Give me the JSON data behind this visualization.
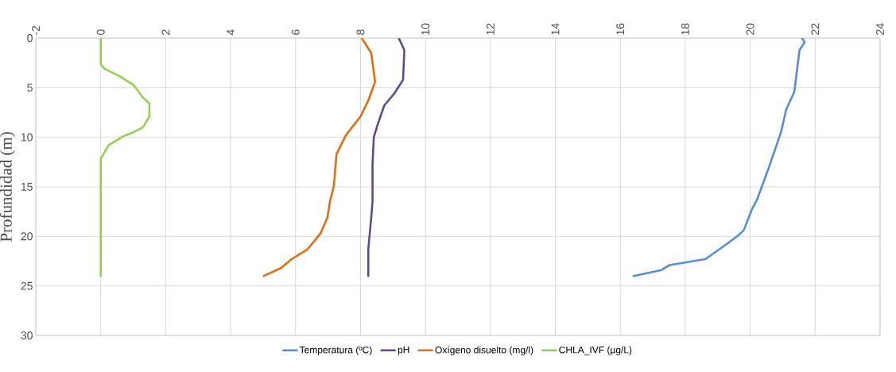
{
  "chart_data": {
    "type": "line",
    "ylabel": "Profundidad (m)",
    "xlim": [
      -2,
      24
    ],
    "xticks": [
      -2,
      0,
      2,
      4,
      6,
      8,
      10,
      12,
      14,
      16,
      18,
      20,
      22,
      24
    ],
    "ylim": [
      30,
      0
    ],
    "yticks": [
      0,
      5,
      10,
      15,
      20,
      25,
      30
    ],
    "grid": true,
    "legend": "bottom",
    "series": [
      {
        "name": "Temperatura (ºC)",
        "color": "#558ed5",
        "x": [
          21.6,
          21.68,
          21.52,
          21.36,
          21.11,
          20.95,
          20.58,
          20.21,
          20.05,
          19.8,
          19.6,
          19.27,
          18.62,
          17.52,
          17.27,
          16.41
        ],
        "values": [
          0,
          0.4,
          1.2,
          5.4,
          7.2,
          9.5,
          13.0,
          16.3,
          17.3,
          19.4,
          20.0,
          20.8,
          22.3,
          22.9,
          23.4,
          24
        ]
      },
      {
        "name": "pH",
        "color": "#5f4b8b",
        "x": [
          9.18,
          9.35,
          9.31,
          9.06,
          8.73,
          8.53,
          8.41,
          8.37,
          8.37,
          8.33,
          8.24,
          8.24
        ],
        "values": [
          0,
          1.2,
          4.2,
          5.5,
          6.8,
          8.7,
          10.0,
          12.7,
          16.5,
          18.1,
          21.3,
          24
        ]
      },
      {
        "name": "Oxígeno disuelto (mg/l)",
        "color": "#e46c0a",
        "x": [
          8.04,
          8.33,
          8.45,
          8.24,
          8.0,
          7.55,
          7.26,
          7.18,
          7.06,
          6.98,
          6.77,
          6.37,
          5.88,
          5.55,
          5.02
        ],
        "values": [
          0,
          1.5,
          4.4,
          6.3,
          7.9,
          9.8,
          11.7,
          14.9,
          16.5,
          18.1,
          19.7,
          21.3,
          22.3,
          23.2,
          24
        ]
      },
      {
        "name": "CHLA_IVF (µg/L)",
        "color": "#92d050",
        "x": [
          0,
          0,
          0.12,
          0.56,
          1.0,
          1.3,
          1.5,
          1.5,
          1.3,
          1.0,
          0.7,
          0.24,
          0,
          0
        ],
        "values": [
          0,
          2.6,
          3.1,
          3.8,
          4.7,
          6.0,
          6.6,
          7.9,
          9.0,
          9.5,
          9.9,
          10.8,
          12.2,
          24
        ]
      }
    ]
  }
}
